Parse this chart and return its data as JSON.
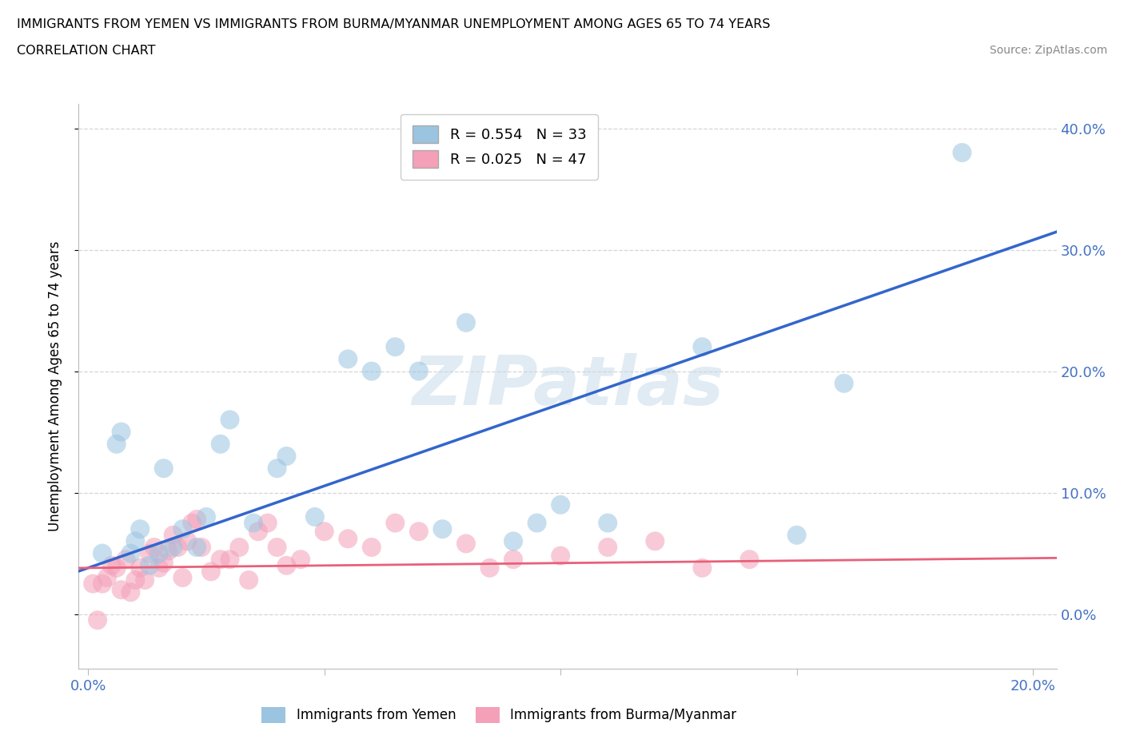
{
  "title_line1": "IMMIGRANTS FROM YEMEN VS IMMIGRANTS FROM BURMA/MYANMAR UNEMPLOYMENT AMONG AGES 65 TO 74 YEARS",
  "title_line2": "CORRELATION CHART",
  "source_text": "Source: ZipAtlas.com",
  "ylabel": "Unemployment Among Ages 65 to 74 years",
  "xlim": [
    -0.002,
    0.205
  ],
  "ylim": [
    -0.045,
    0.42
  ],
  "yticks": [
    0.0,
    0.1,
    0.2,
    0.3,
    0.4
  ],
  "xticks": [
    0.0,
    0.05,
    0.1,
    0.15,
    0.2
  ],
  "ytick_labels": [
    "0.0%",
    "10.0%",
    "20.0%",
    "30.0%",
    "40.0%"
  ],
  "xtick_labels": [
    "0.0%",
    "",
    "",
    "",
    "20.0%"
  ],
  "legend_R1": "R = 0.554",
  "legend_N1": "N = 33",
  "legend_R2": "R = 0.025",
  "legend_N2": "N = 47",
  "color_yemen": "#9ac4e0",
  "color_burma": "#f4a0b8",
  "color_line_yemen": "#3366cc",
  "color_line_burma": "#e8607a",
  "watermark": "ZIPatlas",
  "yemen_slope": 1.35,
  "yemen_intercept": 0.038,
  "burma_slope": 0.04,
  "burma_intercept": 0.038,
  "yemen_x": [
    0.003,
    0.006,
    0.007,
    0.009,
    0.01,
    0.011,
    0.013,
    0.015,
    0.016,
    0.018,
    0.02,
    0.023,
    0.025,
    0.028,
    0.03,
    0.035,
    0.04,
    0.042,
    0.048,
    0.055,
    0.06,
    0.065,
    0.07,
    0.075,
    0.08,
    0.09,
    0.095,
    0.1,
    0.11,
    0.13,
    0.15,
    0.16,
    0.185
  ],
  "yemen_y": [
    0.05,
    0.14,
    0.15,
    0.05,
    0.06,
    0.07,
    0.04,
    0.05,
    0.12,
    0.055,
    0.07,
    0.055,
    0.08,
    0.14,
    0.16,
    0.075,
    0.12,
    0.13,
    0.08,
    0.21,
    0.2,
    0.22,
    0.2,
    0.07,
    0.24,
    0.06,
    0.075,
    0.09,
    0.075,
    0.22,
    0.065,
    0.19,
    0.38
  ],
  "burma_x": [
    0.001,
    0.002,
    0.003,
    0.004,
    0.005,
    0.006,
    0.007,
    0.008,
    0.009,
    0.01,
    0.011,
    0.012,
    0.013,
    0.014,
    0.015,
    0.016,
    0.017,
    0.018,
    0.019,
    0.02,
    0.021,
    0.022,
    0.023,
    0.024,
    0.026,
    0.028,
    0.03,
    0.032,
    0.034,
    0.036,
    0.038,
    0.04,
    0.042,
    0.045,
    0.05,
    0.055,
    0.06,
    0.065,
    0.07,
    0.08,
    0.085,
    0.09,
    0.1,
    0.11,
    0.12,
    0.13,
    0.14
  ],
  "burma_y": [
    0.025,
    -0.005,
    0.025,
    0.03,
    0.04,
    0.038,
    0.02,
    0.045,
    0.018,
    0.028,
    0.038,
    0.028,
    0.05,
    0.055,
    0.038,
    0.042,
    0.052,
    0.065,
    0.055,
    0.03,
    0.06,
    0.075,
    0.078,
    0.055,
    0.035,
    0.045,
    0.045,
    0.055,
    0.028,
    0.068,
    0.075,
    0.055,
    0.04,
    0.045,
    0.068,
    0.062,
    0.055,
    0.075,
    0.068,
    0.058,
    0.038,
    0.045,
    0.048,
    0.055,
    0.06,
    0.038,
    0.045
  ]
}
